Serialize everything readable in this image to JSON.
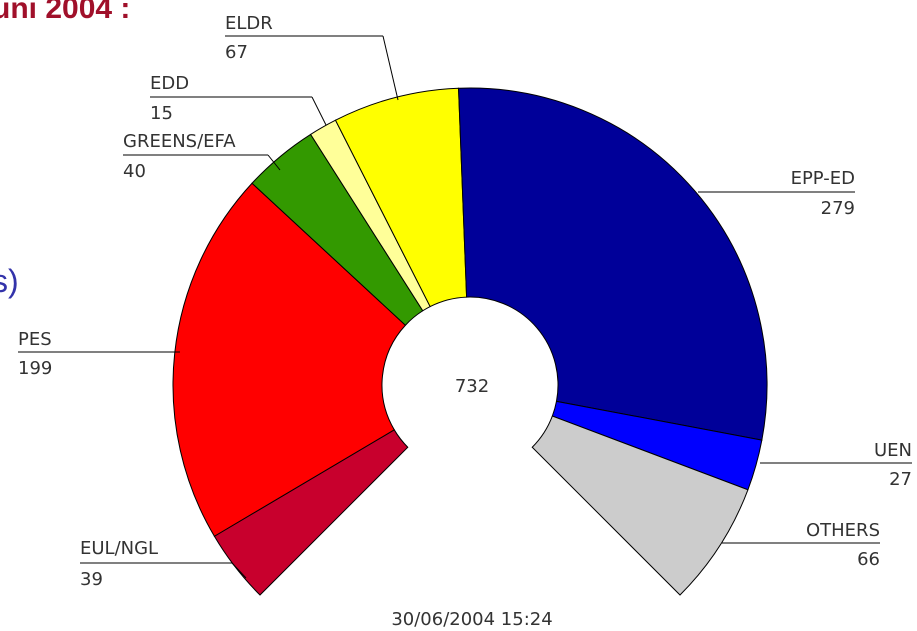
{
  "title_fragment": "uni 2004 :",
  "side_fragment": "s)",
  "chart_data": {
    "type": "parliament",
    "total": 732,
    "timestamp": "30/06/2004 15:24",
    "categories": [
      "EUL/NGL",
      "PES",
      "GREENS/EFA",
      "EDD",
      "ELDR",
      "EPP-ED",
      "UEN",
      "OTHERS"
    ],
    "values": [
      39,
      199,
      40,
      15,
      67,
      279,
      27,
      66
    ],
    "colors": [
      "#c8002d",
      "#ff0000",
      "#339900",
      "#ffff99",
      "#ffff00",
      "#000099",
      "#0000ff",
      "#cccccc"
    ]
  }
}
